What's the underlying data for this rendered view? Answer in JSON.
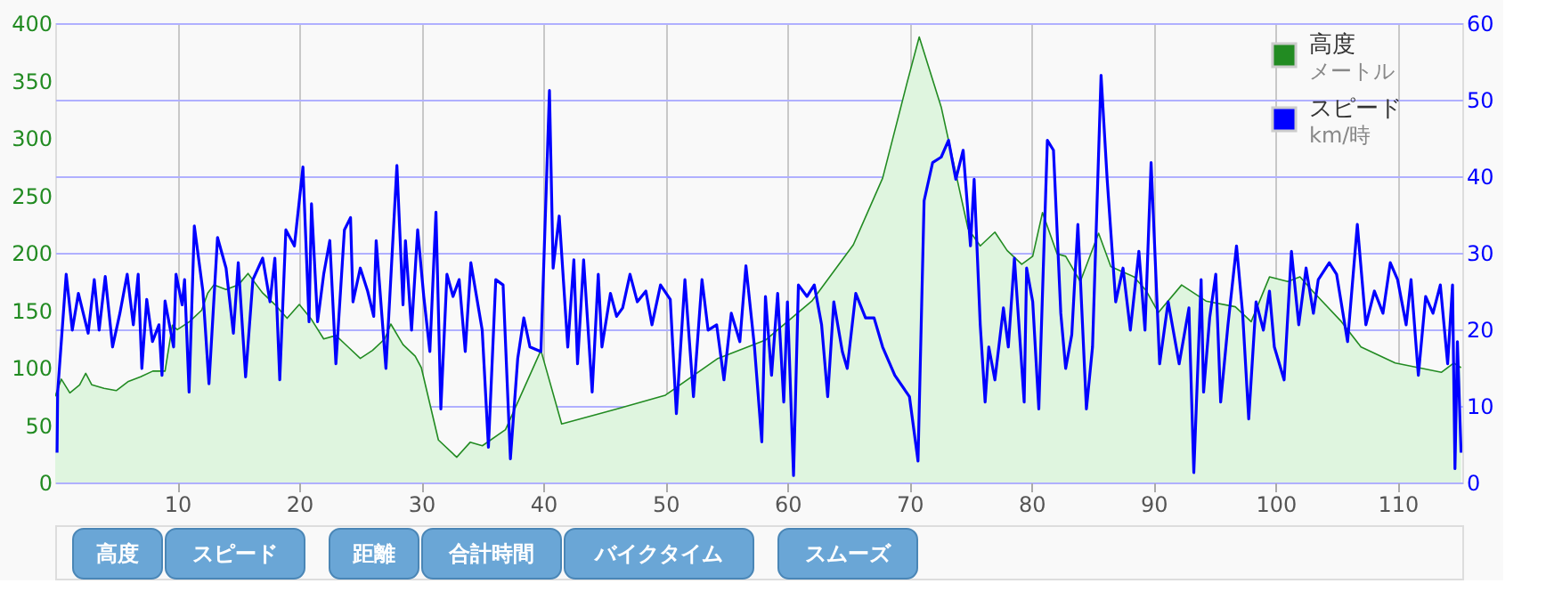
{
  "chart_data": {
    "type": "line",
    "xlim": [
      0,
      115.3
    ],
    "xticks": [
      10,
      20,
      30,
      40,
      50,
      60,
      70,
      80,
      90,
      100,
      110
    ],
    "ylim": [
      0,
      400
    ],
    "yticks": [
      0,
      50,
      100,
      150,
      200,
      250,
      300,
      350,
      400
    ],
    "y2lim": [
      0,
      60
    ],
    "y2ticks": [
      0,
      10,
      20,
      30,
      40,
      50,
      60
    ],
    "grid": true,
    "legend": "top right",
    "marker": "none",
    "line_style": "solid",
    "series": [
      {
        "name": "高度メートル",
        "type": "area",
        "color": "#228b22",
        "x": [
          0,
          0.5,
          1.2,
          2,
          2.5,
          3,
          4,
          5,
          6,
          7,
          8,
          9,
          9.6,
          10,
          11,
          12,
          12.5,
          13,
          14,
          15,
          15.8,
          16.5,
          17,
          18,
          19,
          20,
          21,
          22,
          23,
          24,
          25,
          26,
          27,
          27.5,
          28.5,
          29.5,
          30,
          31.4,
          32.9,
          34,
          35,
          36.9,
          39.8,
          41.5,
          46,
          50,
          54.3,
          58.2,
          62,
          65.4,
          67.8,
          69.8,
          70.8,
          72.6,
          74.8,
          75.8,
          77,
          78,
          79.2,
          80.1,
          80.9,
          82.1,
          82.8,
          84,
          85.5,
          86.5,
          88.4,
          89.4,
          90.4,
          92.3,
          94.3,
          96.7,
          98,
          99.5,
          101,
          102,
          103,
          105.4,
          107,
          109.8,
          113.6,
          114.6,
          115.2
        ],
        "values": [
          75,
          90,
          78,
          85,
          95,
          85,
          82,
          80,
          88,
          92,
          97,
          97,
          137,
          133,
          140,
          150,
          165,
          172,
          168,
          172,
          182,
          172,
          165,
          155,
          143,
          155,
          142,
          125,
          128,
          118,
          108,
          115,
          125,
          138,
          120,
          110,
          100,
          37,
          22,
          35,
          32,
          46,
          115,
          51,
          64,
          76,
          108,
          124,
          158,
          207,
          265,
          348,
          388,
          327,
          221,
          206,
          218,
          202,
          190,
          197,
          235,
          199,
          197,
          175,
          217,
          188,
          179,
          167,
          148,
          172,
          158,
          153,
          140,
          179,
          175,
          179,
          167,
          140,
          118,
          104,
          96,
          104,
          100
        ]
      },
      {
        "name": "スピードkm/時",
        "axis": "y2",
        "color": "#0000ff",
        "x": [
          0.15,
          0.2,
          0.9,
          1.4,
          1.9,
          2.7,
          3.2,
          3.6,
          4.1,
          4.7,
          5.3,
          5.9,
          6.4,
          6.8,
          7.1,
          7.5,
          7.97,
          8.5,
          8.75,
          9.0,
          9.7,
          9.9,
          10.4,
          10.6,
          10.97,
          11.4,
          12.1,
          12.6,
          13.3,
          14.0,
          14.6,
          15.0,
          15.6,
          16.2,
          17.0,
          17.6,
          18.0,
          18.4,
          18.9,
          19.6,
          20.3,
          20.8,
          21.0,
          21.5,
          22.0,
          22.5,
          23.0,
          23.7,
          24.2,
          24.4,
          25.0,
          25.6,
          26.1,
          26.3,
          27.1,
          28.0,
          28.5,
          28.7,
          29.2,
          29.7,
          30.2,
          30.7,
          31.2,
          31.6,
          32.1,
          32.6,
          33.1,
          33.6,
          34.06,
          34.99,
          35.5,
          36.1,
          36.7,
          37.3,
          37.9,
          38.4,
          38.9,
          39.8,
          40.5,
          40.8,
          41.3,
          42.0,
          42.5,
          42.8,
          43.3,
          44.0,
          44.5,
          44.8,
          45.5,
          46.0,
          46.5,
          47.1,
          47.7,
          48.4,
          48.9,
          49.6,
          50.4,
          50.9,
          51.6,
          52.3,
          53.0,
          53.5,
          54.2,
          54.8,
          55.4,
          56.1,
          56.6,
          57.3,
          57.9,
          58.2,
          58.7,
          59.2,
          59.7,
          60.0,
          60.5,
          60.9,
          61.6,
          62.2,
          62.8,
          63.3,
          63.8,
          64.5,
          64.9,
          65.6,
          66.4,
          67.1,
          67.8,
          68.8,
          70.0,
          70.7,
          71.2,
          71.9,
          72.6,
          73.2,
          73.8,
          74.4,
          75.0,
          75.3,
          75.8,
          76.2,
          76.5,
          77.0,
          77.7,
          78.1,
          78.6,
          79.4,
          79.6,
          80.1,
          80.6,
          81.3,
          81.8,
          82.4,
          82.8,
          83.3,
          83.8,
          84.5,
          85.0,
          85.7,
          86.2,
          86.9,
          87.5,
          88.1,
          88.8,
          89.3,
          89.8,
          90.5,
          91.2,
          92.1,
          92.9,
          93.3,
          93.9,
          94.1,
          94.6,
          95.1,
          95.5,
          96.1,
          96.8,
          97.3,
          97.8,
          98.4,
          99.0,
          99.5,
          99.9,
          100.7,
          101.3,
          101.9,
          102.5,
          103.1,
          103.5,
          104.4,
          105.0,
          105.9,
          106.7,
          107.4,
          108.1,
          108.8,
          109.4,
          110.0,
          110.7,
          111.1,
          111.7,
          112.3,
          112.9,
          113.5,
          114.1,
          114.5,
          114.7,
          114.9,
          115.2
        ],
        "values": [
          3.9,
          11.8,
          27.2,
          19.9,
          24.7,
          19.5,
          26.5,
          19.9,
          26.9,
          17.7,
          22.1,
          27.2,
          20.6,
          27.2,
          14.9,
          23.9,
          18.4,
          20.6,
          14.0,
          23.7,
          17.7,
          27.2,
          23.2,
          26.5,
          11.8,
          33.5,
          25,
          12.9,
          32,
          28,
          19.5,
          28.7,
          13.8,
          26.5,
          29.3,
          23.6,
          29.3,
          13.4,
          33,
          30.9,
          41.2,
          21,
          36.4,
          21,
          27.2,
          31.6,
          15.5,
          33,
          34.6,
          23.6,
          28,
          25,
          21.7,
          31.6,
          14.9,
          41.4,
          23.2,
          31.6,
          19.9,
          33,
          24.3,
          17.1,
          35.3,
          9.6,
          27.2,
          24.3,
          26.5,
          17.1,
          28.7,
          19.9,
          4.6,
          26.5,
          25.8,
          3.1,
          16.2,
          21.5,
          17.7,
          17.1,
          51.2,
          28,
          34.8,
          17.7,
          29.1,
          15.5,
          29.1,
          11.8,
          27.2,
          17.7,
          24.7,
          21.7,
          22.8,
          27.2,
          23.6,
          25,
          20.6,
          25.8,
          23.9,
          9,
          26.5,
          11.2,
          26.5,
          19.9,
          20.6,
          13.4,
          22.1,
          18.4,
          28.3,
          17.7,
          5.3,
          24.3,
          14,
          24.7,
          10.5,
          23.6,
          0.9,
          25.8,
          24.3,
          25.8,
          20.6,
          11.2,
          23.6,
          17.1,
          14.9,
          24.7,
          21.5,
          21.5,
          17.7,
          14,
          11.2,
          2.8,
          36.8,
          41.8,
          42.5,
          44.7,
          39.6,
          43.4,
          30.9,
          39.6,
          20.6,
          10.5,
          17.7,
          13.4,
          22.8,
          17.7,
          29.3,
          10.5,
          28,
          23.6,
          9.6,
          44.7,
          43.4,
          22.1,
          14.9,
          19.3,
          33.7,
          9.6,
          17.7,
          53.2,
          39.6,
          23.6,
          28,
          19.9,
          30.2,
          19.9,
          41.8,
          15.5,
          23.6,
          15.5,
          22.8,
          1.3,
          26.5,
          11.8,
          21.5,
          27.2,
          10.5,
          20.6,
          30.9,
          22.1,
          8.3,
          23.6,
          19.9,
          25,
          17.7,
          13.4,
          30.2,
          20.6,
          28,
          22.1,
          26.5,
          28.7,
          27.2,
          18.4,
          33.7,
          20.6,
          25,
          22.1,
          28.7,
          26.5,
          20.6,
          26.5,
          14,
          24.3,
          22.1,
          25.8,
          15.5,
          25.8,
          1.8,
          18.4,
          3.9
        ]
      }
    ],
    "annotations": [
      "高度",
      "スピード",
      "距離",
      "合計時間",
      "バイクタイム",
      "スムーズ"
    ]
  }
}
